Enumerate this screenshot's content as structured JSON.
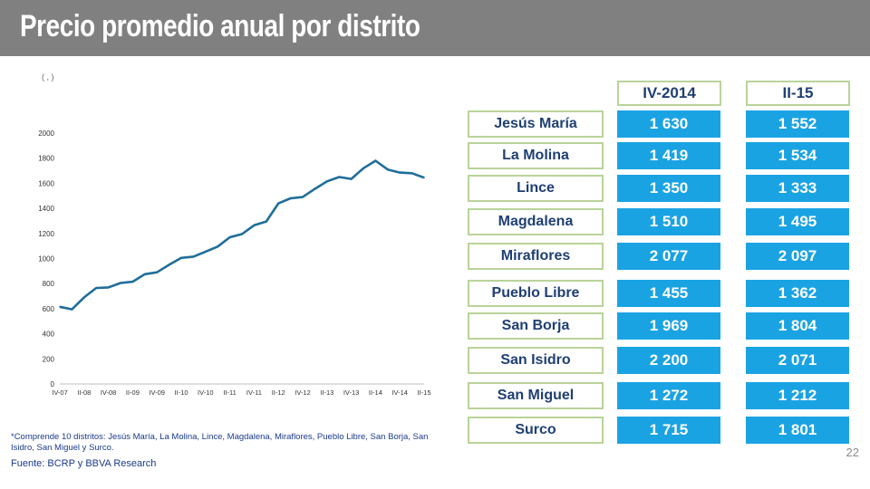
{
  "title": "Precio promedio anual por distrito",
  "top_note": "( , )",
  "page_number": "22",
  "footnote": "*Comprende 10 distritos: Jesús María, La Molina, Lince, Magdalena, Miraflores, Pueblo Libre, San Borja, San Isidro, San Miguel y Surco.",
  "source": "Fuente: BCRP   y BBVA Research",
  "colors": {
    "line": "#1f6e9a",
    "cell": "#1aa3e3",
    "border": "#b9d39a",
    "title_bar": "#808080"
  },
  "chart_data": {
    "type": "line",
    "title": "",
    "xlabel": "",
    "ylabel": "",
    "ylim": [
      0,
      2000
    ],
    "yticks": [
      0,
      200,
      400,
      600,
      800,
      1000,
      1200,
      1400,
      1600,
      1800,
      2000
    ],
    "x_tick_labels": [
      "IV-07",
      "II-08",
      "IV-08",
      "II-09",
      "IV-09",
      "II-10",
      "IV-10",
      "II-11",
      "IV-11",
      "II-12",
      "IV-12",
      "II-13",
      "IV-13",
      "II-14",
      "IV-14",
      "II-15"
    ],
    "x": [
      "IV-07",
      "I-08",
      "II-08",
      "III-08",
      "IV-08",
      "I-09",
      "II-09",
      "III-09",
      "IV-09",
      "I-10",
      "II-10",
      "III-10",
      "IV-10",
      "I-11",
      "II-11",
      "III-11",
      "IV-11",
      "I-12",
      "II-12",
      "III-12",
      "IV-12",
      "I-13",
      "II-13",
      "III-13",
      "IV-13",
      "I-14",
      "II-14",
      "III-14",
      "IV-14",
      "I-15",
      "II-15"
    ],
    "series": [
      {
        "values": [
          615,
          595,
          690,
          765,
          770,
          805,
          815,
          875,
          890,
          950,
          1005,
          1015,
          1055,
          1095,
          1170,
          1195,
          1265,
          1295,
          1440,
          1480,
          1490,
          1555,
          1615,
          1650,
          1635,
          1720,
          1780,
          1710,
          1685,
          1680,
          1645
        ]
      }
    ],
    "grid": false,
    "legend": "none"
  },
  "table": {
    "headers": [
      "IV-2014",
      "II-15"
    ],
    "rows": [
      {
        "district": "Jesús María",
        "v2014": "1 630",
        "v15": "1 552"
      },
      {
        "district": "La Molina",
        "v2014": "1 419",
        "v15": "1 534"
      },
      {
        "district": "Lince",
        "v2014": "1 350",
        "v15": "1 333"
      },
      {
        "district": "Magdalena",
        "v2014": "1 510",
        "v15": "1 495"
      },
      {
        "district": "Miraflores",
        "v2014": "2 077",
        "v15": "2 097"
      },
      {
        "district": "Pueblo Libre",
        "v2014": "1 455",
        "v15": "1 362"
      },
      {
        "district": "San Borja",
        "v2014": "1 969",
        "v15": "1 804"
      },
      {
        "district": "San Isidro",
        "v2014": "2 200",
        "v15": "2 071"
      },
      {
        "district": "San Miguel",
        "v2014": "1 272",
        "v15": "1 212"
      },
      {
        "district": "Surco",
        "v2014": "1 715",
        "v15": "1 801"
      }
    ]
  }
}
